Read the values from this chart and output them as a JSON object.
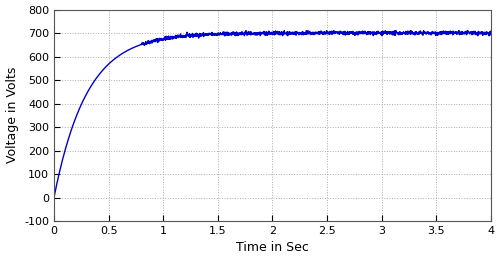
{
  "title": "",
  "xlabel": "Time in Sec",
  "ylabel": "Voltage in Volts",
  "xlim": [
    0,
    4
  ],
  "ylim": [
    -100,
    800
  ],
  "xticks": [
    0,
    0.5,
    1.0,
    1.5,
    2.0,
    2.5,
    3.0,
    3.5,
    4.0
  ],
  "yticks": [
    -100,
    0,
    100,
    200,
    300,
    400,
    500,
    600,
    700,
    800
  ],
  "line_color": "#0000cc",
  "line_width": 1.0,
  "background_color": "#ffffff",
  "grid_color": "#aaaaaa",
  "asymptote": 700,
  "time_constant": 0.3,
  "t_start": 0.0,
  "t_end": 4.0,
  "num_points": 2000,
  "noise_start": 0.8,
  "noise_std": 4.0,
  "figwidth": 5.0,
  "figheight": 2.6,
  "xlabel_fontsize": 9,
  "ylabel_fontsize": 9,
  "tick_labelsize": 8
}
